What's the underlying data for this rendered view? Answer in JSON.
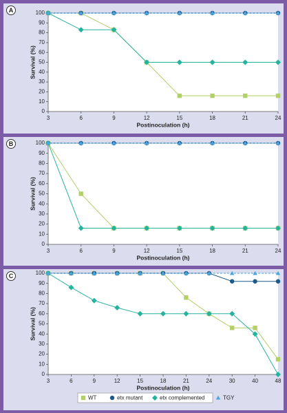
{
  "chart_data": [
    {
      "type": "line",
      "label": "A",
      "x_label": "Postinoculation (h)",
      "y_label": "Survival (%)",
      "categories": [
        "3",
        "6",
        "9",
        "12",
        "15",
        "18",
        "21",
        "24"
      ],
      "ylim": [
        0,
        100
      ],
      "yticks": [
        0,
        10,
        20,
        30,
        40,
        50,
        60,
        70,
        80,
        90,
        100
      ],
      "grid": false,
      "series": [
        {
          "name": "WT",
          "color": "#b3cf68",
          "marker": "square",
          "dashed": false,
          "values": [
            100,
            100,
            83,
            50,
            16,
            16,
            16,
            16
          ]
        },
        {
          "name": "etx mutant",
          "color": "#1d5a8a",
          "marker": "circle",
          "dashed": false,
          "values": [
            100,
            100,
            100,
            100,
            100,
            100,
            100,
            100
          ]
        },
        {
          "name": "etx complemented",
          "color": "#26b39e",
          "marker": "diamond",
          "dashed": false,
          "values": [
            100,
            83,
            83,
            50,
            50,
            50,
            50,
            50
          ]
        },
        {
          "name": "TGY",
          "color": "#4ea5dc",
          "marker": "triangle",
          "dashed": true,
          "values": [
            100,
            100,
            100,
            100,
            100,
            100,
            100,
            100
          ]
        }
      ]
    },
    {
      "type": "line",
      "label": "B",
      "x_label": "Postinoculation (h)",
      "y_label": "Survival (%)",
      "categories": [
        "3",
        "6",
        "9",
        "12",
        "15",
        "18",
        "21",
        "24"
      ],
      "ylim": [
        0,
        100
      ],
      "yticks": [
        0,
        10,
        20,
        30,
        40,
        50,
        60,
        70,
        80,
        90,
        100
      ],
      "grid": false,
      "series": [
        {
          "name": "WT",
          "color": "#b3cf68",
          "marker": "square",
          "dashed": false,
          "values": [
            100,
            50,
            16,
            16,
            16,
            16,
            16,
            16
          ]
        },
        {
          "name": "etx mutant",
          "color": "#1d5a8a",
          "marker": "circle",
          "dashed": false,
          "values": [
            100,
            100,
            100,
            100,
            100,
            100,
            100,
            100
          ]
        },
        {
          "name": "etx complemented",
          "color": "#26b39e",
          "marker": "diamond",
          "dashed": false,
          "values": [
            100,
            16,
            16,
            16,
            16,
            16,
            16,
            16
          ]
        },
        {
          "name": "TGY",
          "color": "#4ea5dc",
          "marker": "triangle",
          "dashed": true,
          "values": [
            100,
            100,
            100,
            100,
            100,
            100,
            100,
            100
          ]
        }
      ]
    },
    {
      "type": "line",
      "label": "C",
      "x_label": "Postinoculation (h)",
      "y_label": "Survival (%)",
      "categories": [
        "3",
        "6",
        "9",
        "12",
        "15",
        "18",
        "21",
        "24",
        "30",
        "40",
        "48"
      ],
      "ylim": [
        0,
        100
      ],
      "yticks": [
        0,
        10,
        20,
        30,
        40,
        50,
        60,
        70,
        80,
        90,
        100
      ],
      "grid": false,
      "legend": "bottom",
      "series": [
        {
          "name": "WT",
          "color": "#b3cf68",
          "marker": "square",
          "dashed": false,
          "values": [
            100,
            100,
            100,
            100,
            100,
            100,
            76,
            60,
            46,
            46,
            15
          ]
        },
        {
          "name": "etx mutant",
          "color": "#1d5a8a",
          "marker": "circle",
          "dashed": false,
          "values": [
            100,
            100,
            100,
            100,
            100,
            100,
            100,
            100,
            92,
            92,
            92
          ]
        },
        {
          "name": "etx complemented",
          "color": "#26b39e",
          "marker": "diamond",
          "dashed": false,
          "values": [
            100,
            86,
            73,
            66,
            60,
            60,
            60,
            60,
            60,
            40,
            0
          ]
        },
        {
          "name": "TGY",
          "color": "#4ea5dc",
          "marker": "triangle",
          "dashed": true,
          "values": [
            100,
            100,
            100,
            100,
            100,
            100,
            100,
            100,
            100,
            100,
            100
          ]
        }
      ]
    }
  ]
}
